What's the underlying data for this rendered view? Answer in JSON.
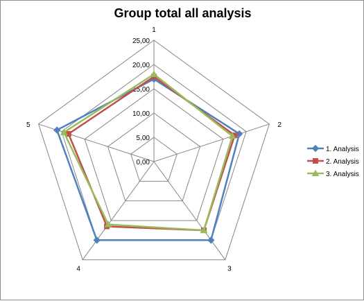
{
  "chart_data": {
    "type": "radar",
    "title": "Group total all analysis",
    "categories": [
      "1",
      "2",
      "3",
      "4",
      "5"
    ],
    "ylim": [
      0,
      25
    ],
    "ticks": [
      "0,00",
      "5,00",
      "10,00",
      "15,00",
      "20,00",
      "25,00"
    ],
    "tick_values": [
      0,
      5,
      10,
      15,
      20,
      25
    ],
    "grid": true,
    "legend_position": "right",
    "series": [
      {
        "name": "1. Analysis",
        "values": [
          17.0,
          18.5,
          20.0,
          20.0,
          21.0
        ],
        "color": "#4f81bd",
        "marker": "diamond"
      },
      {
        "name": "2. Analysis",
        "values": [
          17.5,
          17.5,
          17.5,
          16.5,
          18.5
        ],
        "color": "#c0504d",
        "marker": "square"
      },
      {
        "name": "3. Analysis",
        "values": [
          18.0,
          17.0,
          17.5,
          16.0,
          19.5
        ],
        "color": "#9bbb59",
        "marker": "triangle"
      }
    ]
  }
}
